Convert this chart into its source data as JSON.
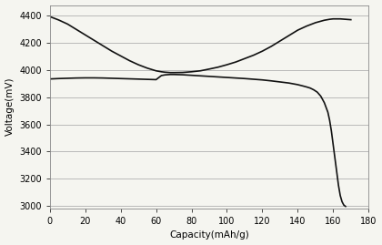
{
  "title": "",
  "xlabel": "Capacity(mAh/g)",
  "ylabel": "Voltage(mV)",
  "xlim": [
    0,
    180
  ],
  "ylim": [
    2980,
    4480
  ],
  "xticks": [
    0,
    20,
    40,
    60,
    80,
    100,
    120,
    140,
    160,
    180
  ],
  "yticks": [
    3000,
    3200,
    3400,
    3600,
    3800,
    4000,
    4200,
    4400
  ],
  "background_color": "#f5f5f0",
  "grid_color": "#b0b0b0",
  "line_color": "#111111",
  "curve1_x": [
    0,
    5,
    10,
    15,
    20,
    25,
    30,
    35,
    40,
    45,
    50,
    55,
    60,
    63,
    65,
    68,
    70,
    75,
    80,
    85,
    90,
    95,
    100,
    105,
    110,
    115,
    120,
    125,
    130,
    135,
    140,
    145,
    150,
    155,
    158,
    160,
    162,
    164,
    166,
    168,
    170
  ],
  "curve1_y": [
    4395,
    4370,
    4340,
    4300,
    4260,
    4220,
    4180,
    4140,
    4105,
    4070,
    4040,
    4015,
    3995,
    3988,
    3985,
    3982,
    3982,
    3983,
    3988,
    3995,
    4008,
    4022,
    4040,
    4060,
    4085,
    4110,
    4140,
    4175,
    4215,
    4255,
    4295,
    4325,
    4350,
    4368,
    4375,
    4378,
    4378,
    4378,
    4376,
    4374,
    4372
  ],
  "curve2_x": [
    0,
    5,
    10,
    15,
    20,
    25,
    30,
    35,
    40,
    45,
    50,
    55,
    60,
    63,
    65,
    68,
    70,
    75,
    80,
    85,
    90,
    95,
    100,
    105,
    110,
    115,
    120,
    125,
    130,
    135,
    140,
    143,
    145,
    147,
    149,
    151,
    153,
    155,
    157,
    158,
    159,
    160,
    161,
    162,
    163,
    164,
    165,
    166,
    167
  ],
  "curve2_y": [
    3935,
    3938,
    3940,
    3942,
    3943,
    3943,
    3942,
    3940,
    3938,
    3936,
    3934,
    3932,
    3930,
    3960,
    3965,
    3968,
    3968,
    3966,
    3962,
    3958,
    3954,
    3950,
    3946,
    3942,
    3938,
    3933,
    3928,
    3921,
    3913,
    3905,
    3893,
    3883,
    3876,
    3868,
    3855,
    3838,
    3808,
    3760,
    3690,
    3630,
    3550,
    3450,
    3350,
    3250,
    3150,
    3075,
    3030,
    3005,
    2995
  ]
}
